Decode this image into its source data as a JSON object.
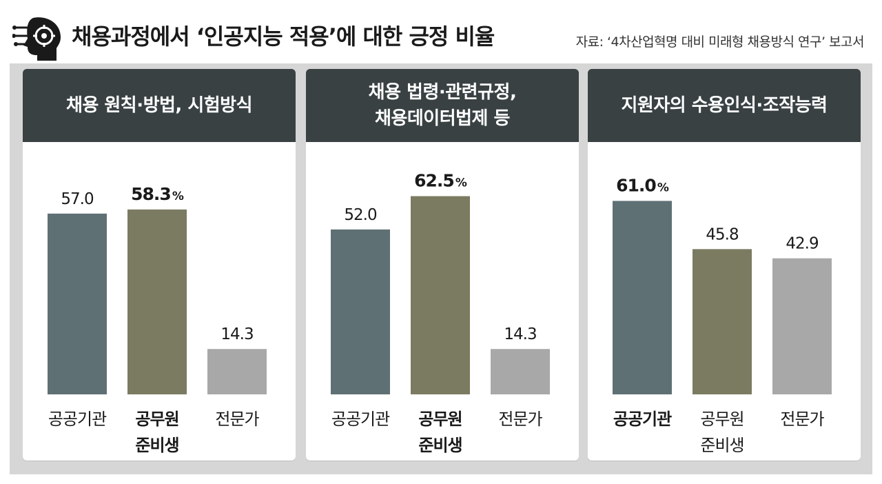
{
  "header": {
    "title": "채용과정에서 ‘인공지능 적용’에 대한 긍정 비율",
    "source": "자료: ‘4차산업혁명 대비 미래형 채용방식 연구’ 보고서",
    "icon": "brain-circuit-icon"
  },
  "colors": {
    "header_bg": "#394143",
    "public_institution": "#5f7075",
    "civil_service_candidate": "#7b7b62",
    "expert": "#a8a8a8"
  },
  "chart_data": [
    {
      "type": "bar",
      "title": "채용 원칙·방법, 시험방식",
      "categories": [
        "공공기관",
        "공무원\n준비생",
        "전문가"
      ],
      "values": [
        57.0,
        58.3,
        14.3
      ],
      "value_labels": [
        "57.0",
        "58.3",
        "14.3"
      ],
      "highlight_index": 1,
      "unit": "%",
      "ylim": [
        0,
        100
      ]
    },
    {
      "type": "bar",
      "title": "채용 법령·관련규정,\n채용데이터법제 등",
      "categories": [
        "공공기관",
        "공무원\n준비생",
        "전문가"
      ],
      "values": [
        52.0,
        62.5,
        14.3
      ],
      "value_labels": [
        "52.0",
        "62.5",
        "14.3"
      ],
      "highlight_index": 1,
      "unit": "%",
      "ylim": [
        0,
        100
      ]
    },
    {
      "type": "bar",
      "title": "지원자의 수용인식·조작능력",
      "categories": [
        "공공기관",
        "공무원\n준비생",
        "전문가"
      ],
      "values": [
        61.0,
        45.8,
        42.9
      ],
      "value_labels": [
        "61.0",
        "45.8",
        "42.9"
      ],
      "highlight_index": 0,
      "unit": "%",
      "ylim": [
        0,
        100
      ]
    }
  ]
}
